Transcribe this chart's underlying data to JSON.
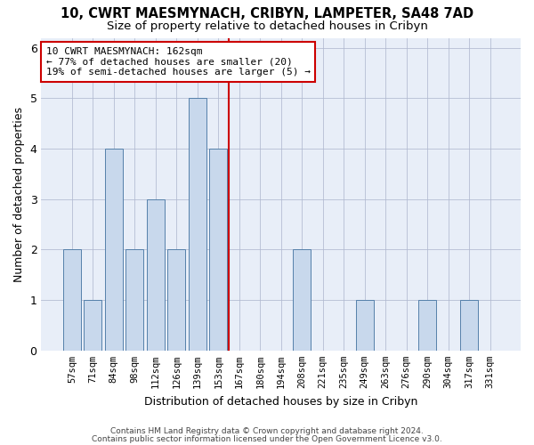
{
  "title1": "10, CWRT MAESMYNACH, CRIBYN, LAMPETER, SA48 7AD",
  "title2": "Size of property relative to detached houses in Cribyn",
  "xlabel": "Distribution of detached houses by size in Cribyn",
  "ylabel": "Number of detached properties",
  "categories": [
    "57sqm",
    "71sqm",
    "84sqm",
    "98sqm",
    "112sqm",
    "126sqm",
    "139sqm",
    "153sqm",
    "167sqm",
    "180sqm",
    "194sqm",
    "208sqm",
    "221sqm",
    "235sqm",
    "249sqm",
    "263sqm",
    "276sqm",
    "290sqm",
    "304sqm",
    "317sqm",
    "331sqm"
  ],
  "values": [
    2,
    1,
    4,
    2,
    3,
    2,
    5,
    4,
    0,
    0,
    0,
    2,
    0,
    0,
    1,
    0,
    0,
    1,
    0,
    1,
    0
  ],
  "bar_color": "#c8d8ec",
  "bar_edge_color": "#5580aa",
  "vline_color": "#cc0000",
  "annotation_text": "10 CWRT MAESMYNACH: 162sqm\n← 77% of detached houses are smaller (20)\n19% of semi-detached houses are larger (5) →",
  "annotation_box_color": "white",
  "annotation_edge_color": "#cc0000",
  "ylim": [
    0,
    6.2
  ],
  "yticks": [
    0,
    1,
    2,
    3,
    4,
    5,
    6
  ],
  "footer1": "Contains HM Land Registry data © Crown copyright and database right 2024.",
  "footer2": "Contains public sector information licensed under the Open Government Licence v3.0.",
  "background_color": "#ffffff",
  "plot_background_color": "#e8eef8",
  "grid_color": "#b0b8d0"
}
